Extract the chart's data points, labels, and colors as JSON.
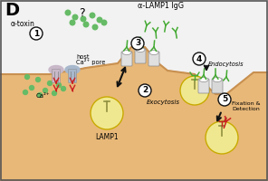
{
  "bg_color": "#f2f2f2",
  "cell_color": "#e8b878",
  "cell_border_color": "#c89050",
  "cell_interior_color": "#d4a060",
  "labels": {
    "title": "D",
    "alpha_toxin": "α-toxin",
    "alpha_lamp1": "α-LAMP1 IgG",
    "host": "host",
    "ca_pore": "Ca²⁺ pore",
    "ca2": "Ca²⁺",
    "lamp1": "LAMP1",
    "exocytosis": "Exocytosis",
    "endocytosis": "Endocytosis",
    "fixation": "Fixation &\nDetection",
    "question": "?"
  },
  "green_color": "#44aa33",
  "red_color": "#cc2020",
  "toxin_color_left": "#c0b8c8",
  "toxin_color_right": "#a0b0c8",
  "lamp1_vesicle_color": "#f0e890",
  "lamp1_vesicle_edge": "#c8aa00",
  "small_circle_color": "#66bb66",
  "arrow_color": "#111111",
  "step_bg": "#ffffff",
  "step_border": "#111111"
}
